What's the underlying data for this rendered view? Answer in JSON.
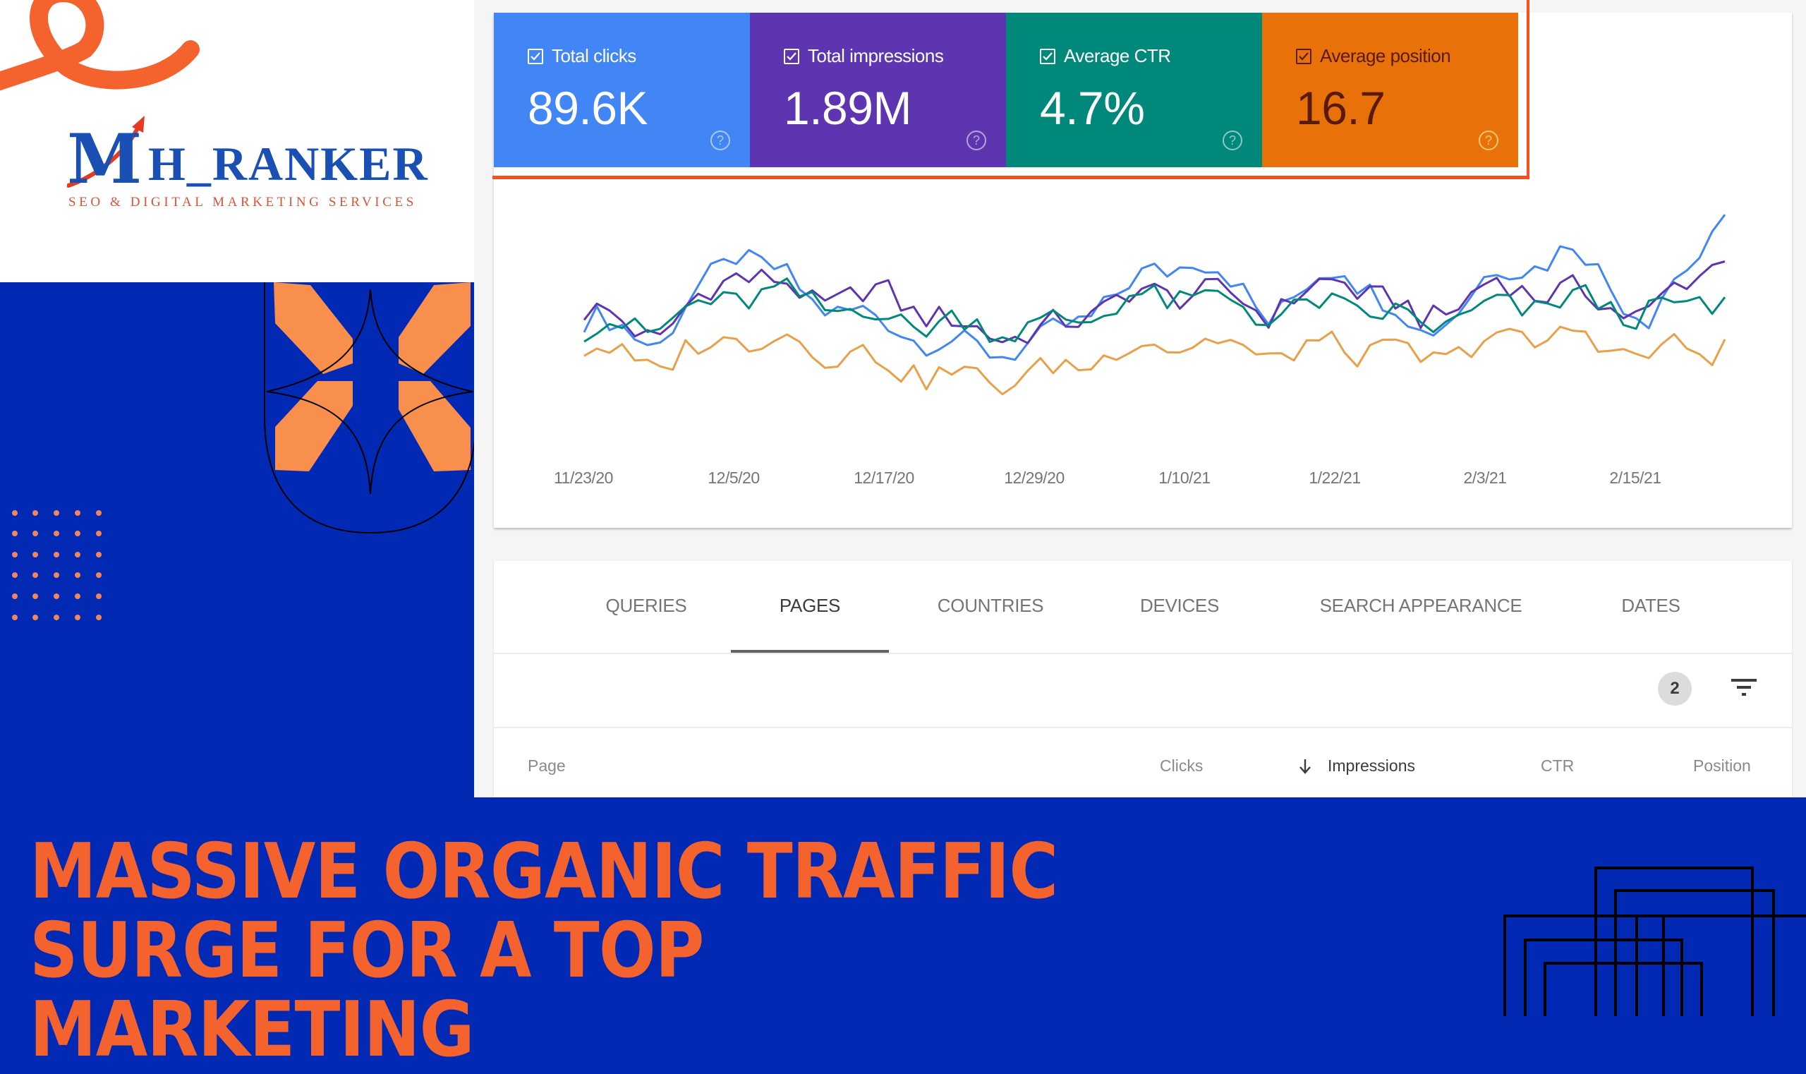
{
  "brand": {
    "name_prefix": "M",
    "name_rest": "H_RANKER",
    "tagline": "SEO & DIGITAL MARKETING SERVICES",
    "colors": {
      "blue": "#1a4fb3",
      "orange": "#f4622d",
      "background": "#0129b3",
      "accent_peach": "#f98f4c"
    }
  },
  "metrics": [
    {
      "label": "Total clicks",
      "value": "89.6K",
      "checked": true,
      "color": "#4285f4",
      "help_icon": "help-circle-icon"
    },
    {
      "label": "Total impressions",
      "value": "1.89M",
      "checked": true,
      "color": "#5e35b1",
      "help_icon": "help-circle-icon"
    },
    {
      "label": "Average CTR",
      "value": "4.7%",
      "checked": true,
      "color": "#00897b",
      "help_icon": "help-circle-icon"
    },
    {
      "label": "Average position",
      "value": "16.7",
      "checked": true,
      "color": "#e8710a",
      "help_icon": "help-circle-icon"
    }
  ],
  "chart": {
    "x_labels": [
      "11/23/20",
      "12/5/20",
      "12/17/20",
      "12/29/20",
      "1/10/21",
      "1/22/21",
      "2/3/21",
      "2/15/21"
    ]
  },
  "tabs": [
    {
      "label": "QUERIES",
      "active": false
    },
    {
      "label": "PAGES",
      "active": true
    },
    {
      "label": "COUNTRIES",
      "active": false
    },
    {
      "label": "DEVICES",
      "active": false
    },
    {
      "label": "SEARCH APPEARANCE",
      "active": false
    },
    {
      "label": "DATES",
      "active": false
    }
  ],
  "filters": {
    "count": "2",
    "icon": "filter-icon"
  },
  "table": {
    "columns": [
      "Page",
      "Clicks",
      "Impressions",
      "CTR",
      "Position"
    ],
    "sorted_column": "Impressions",
    "sort_direction": "descending"
  },
  "headline": {
    "line1": "MASSIVE ORGANIC TRAFFIC",
    "line2": "SURGE FOR A TOP MARKETING"
  },
  "chart_data": {
    "type": "line",
    "title": "",
    "xlabel": "",
    "ylabel": "",
    "grid": false,
    "legend": "metric cards above chart",
    "x": [
      "11/23/20",
      "11/29/20",
      "12/5/20",
      "12/11/20",
      "12/17/20",
      "12/23/20",
      "12/29/20",
      "1/4/21",
      "1/10/21",
      "1/16/21",
      "1/22/21",
      "1/28/21",
      "2/3/21",
      "2/9/21",
      "2/15/21",
      "2/21/21"
    ],
    "x_tick_labels": [
      "11/23/20",
      "12/5/20",
      "12/17/20",
      "12/29/20",
      "1/10/21",
      "1/22/21",
      "2/3/21",
      "2/15/21"
    ],
    "series": [
      {
        "name": "Total clicks",
        "color": "#4285f4",
        "values": [
          52,
          44,
          80,
          60,
          50,
          40,
          42,
          62,
          78,
          54,
          74,
          46,
          70,
          80,
          52,
          92
        ]
      },
      {
        "name": "Total impressions",
        "color": "#5e35b1",
        "values": [
          55,
          46,
          72,
          60,
          62,
          48,
          46,
          60,
          64,
          56,
          68,
          52,
          66,
          62,
          54,
          80
        ]
      },
      {
        "name": "Average CTR",
        "color": "#00897b",
        "values": [
          48,
          50,
          62,
          60,
          52,
          50,
          48,
          58,
          62,
          54,
          58,
          50,
          56,
          60,
          54,
          60
        ]
      },
      {
        "name": "Average position",
        "color": "#e8a04a",
        "values": [
          40,
          34,
          46,
          42,
          34,
          28,
          30,
          40,
          44,
          38,
          42,
          36,
          44,
          46,
          38,
          42
        ]
      }
    ],
    "ylim": [
      0,
      100
    ]
  }
}
